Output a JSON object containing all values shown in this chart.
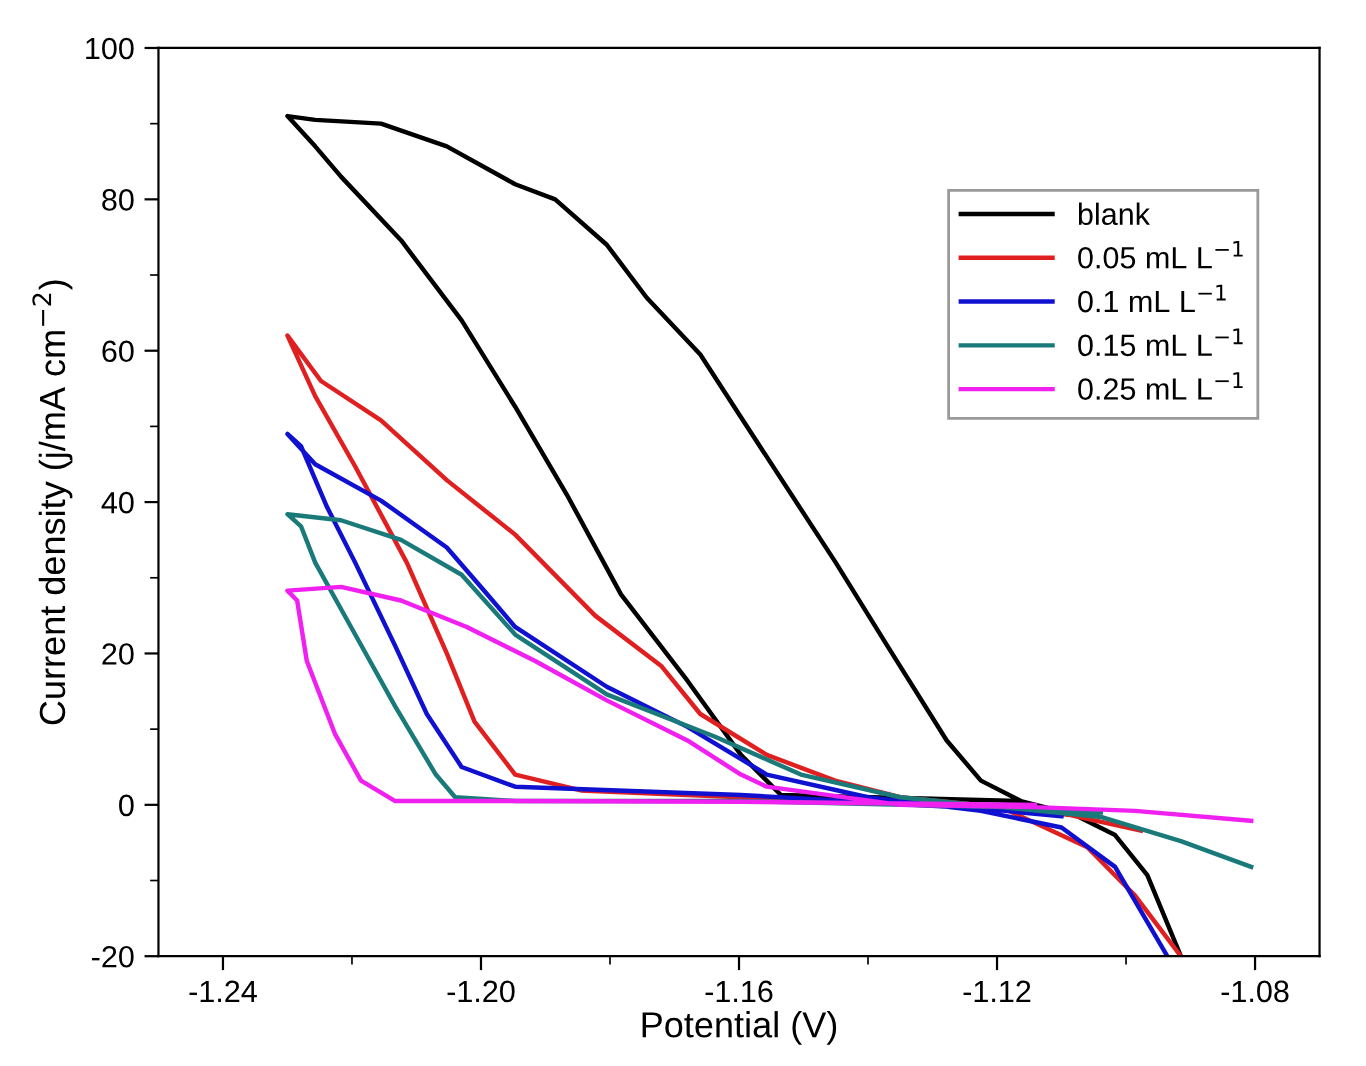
{
  "chart_data": {
    "type": "line",
    "xlabel": "Potential (V)",
    "ylabel": "Current density (j/mA cm$^{−2}$)",
    "xlim": [
      -1.25,
      -1.07
    ],
    "xticks": [
      {
        "value": -1.24,
        "label": "-1.24"
      },
      {
        "value": -1.2,
        "label": "-1.20"
      },
      {
        "value": -1.16,
        "label": "-1.16"
      },
      {
        "value": -1.12,
        "label": "-1.12"
      },
      {
        "value": -1.08,
        "label": "-1.08"
      }
    ],
    "ylim": [
      -20,
      100
    ],
    "yticks": [
      -20,
      0,
      20,
      40,
      60,
      80,
      100
    ],
    "grid": false,
    "legend": "top right",
    "marker": "none",
    "line_style": "solid",
    "series": [
      {
        "name": "blank",
        "color": "#000000",
        "x": [
          -1.0915,
          -1.0967,
          -1.1017,
          -1.108,
          -1.1163,
          -1.13,
          -1.1535,
          -1.1597,
          -1.168,
          -1.1783,
          -1.1867,
          -1.1947,
          -1.203,
          -1.2124,
          -1.2217,
          -1.2257,
          -1.23,
          -1.2257,
          -1.2155,
          -1.2053,
          -1.1947,
          -1.1885,
          -1.1805,
          -1.1743,
          -1.166,
          -1.16,
          -1.145,
          -1.137,
          -1.1278,
          -1.1225,
          -1.1163
        ],
        "values": [
          -20,
          -9.3,
          -4,
          -1.3,
          0.5,
          0.8,
          1.3,
          6.6,
          16.4,
          27.8,
          41,
          52.6,
          64,
          74.6,
          83,
          87,
          91,
          90.5,
          90,
          87,
          82,
          80,
          74,
          67,
          59.5,
          51.6,
          32,
          21,
          8.5,
          3.2,
          0.5
        ]
      },
      {
        "name": "0.05 mL L$^{−1}$",
        "color": "#e02020",
        "x": [
          -1.0977,
          -1.109,
          -1.1194,
          -1.1597,
          -1.1845,
          -1.1947,
          -1.201,
          -1.2053,
          -1.2115,
          -1.2195,
          -1.2257,
          -1.23,
          -1.2248,
          -1.2155,
          -1.2053,
          -1.1947,
          -1.1823,
          -1.172,
          -1.166,
          -1.1557,
          -1.1451,
          -1.135,
          -1.1194,
          -1.106,
          -1.0986,
          -1.0915
        ],
        "values": [
          -3.4,
          -1.3,
          -0.3,
          1,
          1.9,
          4,
          11,
          20,
          32,
          44.7,
          54,
          62,
          56,
          50.8,
          42.9,
          35.7,
          25,
          18.3,
          12,
          6.6,
          3.2,
          1,
          -0.3,
          -5.6,
          -12,
          -20
        ]
      },
      {
        "name": "0.1 mL L$^{−1}$",
        "color": "#1010d0",
        "x": [
          -1.11,
          -1.1225,
          -1.1597,
          -1.1947,
          -1.203,
          -1.2084,
          -1.2133,
          -1.2195,
          -1.2239,
          -1.2279,
          -1.23,
          -1.2257,
          -1.2155,
          -1.2053,
          -1.199,
          -1.1947,
          -1.1805,
          -1.168,
          -1.1557,
          -1.14,
          -1.1225,
          -1.11,
          -1.1017,
          -1.0936
        ],
        "values": [
          -1.5,
          -0.5,
          1.3,
          2.4,
          5,
          12,
          21,
          32,
          39.4,
          47.4,
          49,
          45,
          40.2,
          34,
          27.8,
          23.5,
          15.6,
          10.3,
          4,
          1,
          -0.8,
          -3,
          -8.2,
          -20
        ]
      },
      {
        "name": "0.15 mL L$^{−1}$",
        "color": "#1a7a7a",
        "x": [
          -1.1039,
          -1.1194,
          -1.1597,
          -1.1947,
          -1.204,
          -1.207,
          -1.2133,
          -1.2195,
          -1.2257,
          -1.2279,
          -1.23,
          -1.2217,
          -1.2124,
          -1.203,
          -1.1947,
          -1.1805,
          -1.1637,
          -1.1504,
          -1.135,
          -1.1194,
          -1.1039,
          -1.0915,
          -1.0806
        ],
        "values": [
          -1,
          -0.3,
          0.5,
          0.5,
          1,
          4,
          13,
          22.5,
          32,
          36.8,
          38.4,
          37.6,
          35,
          30.4,
          22.5,
          14.6,
          9,
          4,
          1,
          -0.3,
          -1.6,
          -4.8,
          -8.2
        ]
      },
      {
        "name": "0.25 mL L$^{−1}$",
        "color": "#f020f0",
        "x": [
          -1.1141,
          -1.1597,
          -1.1947,
          -1.2133,
          -1.2186,
          -1.2226,
          -1.227,
          -1.2285,
          -1.23,
          -1.2217,
          -1.2124,
          -1.2022,
          -1.1916,
          -1.1805,
          -1.168,
          -1.1597,
          -1.1557,
          -1.135,
          -1.1141,
          -1.0986,
          -1.0806
        ],
        "values": [
          0,
          0.4,
          0.5,
          0.5,
          3.2,
          9.3,
          19,
          27,
          28.3,
          28.8,
          27,
          23.5,
          19,
          13.8,
          8.5,
          4,
          2.4,
          0,
          -0.3,
          -0.8,
          -2.1
        ]
      }
    ]
  }
}
